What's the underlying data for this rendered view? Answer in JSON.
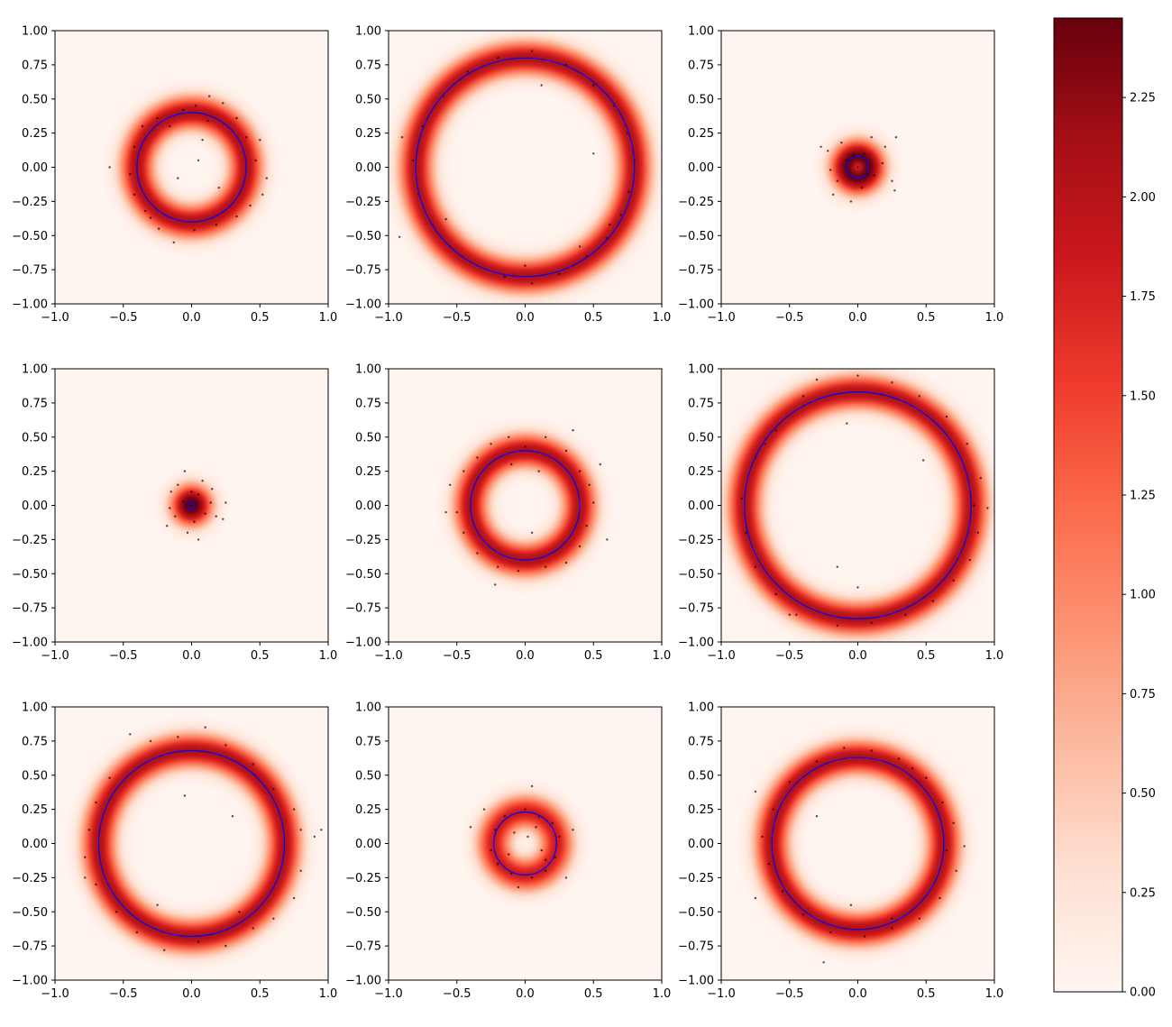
{
  "chart_data": {
    "type": "heatmap",
    "layout": "3x3 grid of density heatmaps with scatter points and fitted circle, shared colorbar",
    "colormap": "Reds",
    "circle_color": "#0000ff",
    "point_color": "#000000",
    "xlim": [
      -1.0,
      1.0
    ],
    "ylim": [
      -1.0,
      1.0
    ],
    "xticks": [
      "−1.0",
      "−0.5",
      "0.0",
      "0.5",
      "1.0"
    ],
    "yticks": [
      "1.00",
      "0.75",
      "0.50",
      "0.25",
      "0.00",
      "−0.25",
      "−0.50",
      "−0.75",
      "−1.00"
    ],
    "colorbar": {
      "range": [
        0.0,
        2.45
      ],
      "ticks": [
        "0.00",
        "0.25",
        "0.50",
        "0.75",
        "1.00",
        "1.25",
        "1.50",
        "1.75",
        "2.00",
        "2.25"
      ]
    },
    "panels": [
      {
        "row": 0,
        "col": 0,
        "radius": 0.4,
        "points": [
          [
            -0.06,
            0.42
          ],
          [
            0.03,
            0.45
          ],
          [
            0.13,
            0.52
          ],
          [
            0.23,
            0.47
          ],
          [
            0.33,
            0.36
          ],
          [
            0.4,
            0.22
          ],
          [
            0.5,
            0.2
          ],
          [
            0.47,
            0.05
          ],
          [
            0.55,
            -0.08
          ],
          [
            0.52,
            -0.2
          ],
          [
            0.43,
            -0.28
          ],
          [
            0.33,
            -0.36
          ],
          [
            0.18,
            -0.42
          ],
          [
            0.02,
            -0.46
          ],
          [
            -0.13,
            -0.55
          ],
          [
            -0.24,
            -0.45
          ],
          [
            -0.34,
            -0.32
          ],
          [
            -0.42,
            -0.2
          ],
          [
            -0.45,
            -0.05
          ],
          [
            -0.6,
            0.0
          ],
          [
            -0.42,
            0.15
          ],
          [
            -0.36,
            0.3
          ],
          [
            -0.25,
            0.36
          ],
          [
            -0.16,
            0.3
          ],
          [
            0.08,
            0.2
          ],
          [
            0.05,
            0.05
          ],
          [
            -0.1,
            -0.08
          ],
          [
            0.2,
            -0.15
          ],
          [
            0.12,
            0.34
          ],
          [
            -0.3,
            -0.37
          ]
        ]
      },
      {
        "row": 0,
        "col": 1,
        "radius": 0.8,
        "points": [
          [
            -0.2,
            0.8
          ],
          [
            0.05,
            0.85
          ],
          [
            0.3,
            0.75
          ],
          [
            0.5,
            0.6
          ],
          [
            0.65,
            0.45
          ],
          [
            0.75,
            0.25
          ],
          [
            0.8,
            0.05
          ],
          [
            0.76,
            -0.18
          ],
          [
            0.7,
            -0.35
          ],
          [
            0.6,
            -0.52
          ],
          [
            0.45,
            -0.65
          ],
          [
            0.25,
            -0.78
          ],
          [
            0.05,
            -0.85
          ],
          [
            -0.15,
            -0.8
          ],
          [
            -0.35,
            -0.72
          ],
          [
            -0.55,
            -0.58
          ],
          [
            -0.68,
            -0.42
          ],
          [
            -0.78,
            -0.2
          ],
          [
            -0.82,
            0.05
          ],
          [
            -0.75,
            0.3
          ],
          [
            -0.6,
            0.52
          ],
          [
            -0.42,
            0.7
          ],
          [
            -0.92,
            -0.51
          ],
          [
            -0.9,
            0.22
          ],
          [
            0.12,
            0.6
          ],
          [
            0.0,
            -0.72
          ],
          [
            0.5,
            0.1
          ],
          [
            0.62,
            -0.42
          ],
          [
            -0.58,
            -0.38
          ],
          [
            0.4,
            -0.58
          ]
        ]
      },
      {
        "row": 0,
        "col": 2,
        "radius": 0.08,
        "points": [
          [
            0.0,
            0.0
          ],
          [
            0.05,
            0.1
          ],
          [
            -0.08,
            0.05
          ],
          [
            0.12,
            -0.06
          ],
          [
            -0.15,
            -0.1
          ],
          [
            0.2,
            0.15
          ],
          [
            -0.22,
            0.12
          ],
          [
            0.25,
            -0.1
          ],
          [
            -0.05,
            -0.25
          ],
          [
            0.1,
            0.22
          ],
          [
            0.03,
            -0.15
          ],
          [
            -0.12,
            0.18
          ],
          [
            0.18,
            0.03
          ],
          [
            -0.2,
            -0.02
          ],
          [
            0.07,
            -0.05
          ],
          [
            -0.03,
            0.08
          ],
          [
            0.28,
            0.22
          ],
          [
            0.27,
            -0.17
          ],
          [
            -0.27,
            0.15
          ],
          [
            -0.18,
            -0.2
          ]
        ]
      },
      {
        "row": 1,
        "col": 0,
        "radius": 0.03,
        "points": [
          [
            0.0,
            0.0
          ],
          [
            0.05,
            0.08
          ],
          [
            -0.06,
            0.03
          ],
          [
            0.1,
            -0.06
          ],
          [
            -0.12,
            -0.08
          ],
          [
            0.15,
            0.12
          ],
          [
            -0.15,
            0.1
          ],
          [
            0.18,
            -0.08
          ],
          [
            -0.03,
            -0.2
          ],
          [
            0.08,
            0.18
          ],
          [
            0.02,
            -0.12
          ],
          [
            -0.1,
            0.15
          ],
          [
            0.14,
            0.02
          ],
          [
            -0.16,
            -0.02
          ],
          [
            0.25,
            0.02
          ],
          [
            0.23,
            -0.1
          ],
          [
            -0.18,
            -0.15
          ],
          [
            -0.05,
            0.25
          ],
          [
            0.05,
            -0.25
          ],
          [
            0.0,
            0.1
          ]
        ]
      },
      {
        "row": 1,
        "col": 1,
        "radius": 0.4,
        "points": [
          [
            -0.12,
            0.5
          ],
          [
            0.0,
            0.43
          ],
          [
            0.15,
            0.5
          ],
          [
            0.3,
            0.4
          ],
          [
            0.4,
            0.25
          ],
          [
            0.47,
            0.15
          ],
          [
            0.5,
            0.02
          ],
          [
            0.45,
            -0.15
          ],
          [
            0.4,
            -0.3
          ],
          [
            0.3,
            -0.42
          ],
          [
            0.15,
            -0.45
          ],
          [
            -0.05,
            -0.48
          ],
          [
            -0.2,
            -0.45
          ],
          [
            -0.35,
            -0.35
          ],
          [
            -0.45,
            -0.2
          ],
          [
            -0.5,
            -0.05
          ],
          [
            -0.55,
            0.15
          ],
          [
            -0.45,
            0.25
          ],
          [
            -0.35,
            0.35
          ],
          [
            -0.25,
            0.45
          ],
          [
            -0.22,
            -0.58
          ],
          [
            -0.58,
            -0.05
          ],
          [
            0.1,
            0.25
          ],
          [
            -0.1,
            0.3
          ],
          [
            0.05,
            -0.2
          ],
          [
            0.6,
            -0.25
          ],
          [
            0.55,
            0.3
          ],
          [
            0.35,
            0.55
          ]
        ]
      },
      {
        "row": 1,
        "col": 2,
        "radius": 0.83,
        "points": [
          [
            -0.3,
            0.92
          ],
          [
            0.0,
            0.95
          ],
          [
            0.25,
            0.9
          ],
          [
            0.45,
            0.8
          ],
          [
            0.65,
            0.65
          ],
          [
            0.8,
            0.45
          ],
          [
            0.9,
            0.2
          ],
          [
            0.85,
            0.0
          ],
          [
            0.88,
            -0.2
          ],
          [
            0.82,
            -0.4
          ],
          [
            0.7,
            -0.55
          ],
          [
            0.55,
            -0.7
          ],
          [
            0.35,
            -0.8
          ],
          [
            0.1,
            -0.86
          ],
          [
            -0.15,
            -0.88
          ],
          [
            -0.45,
            -0.8
          ],
          [
            -0.6,
            -0.65
          ],
          [
            -0.75,
            -0.45
          ],
          [
            -0.82,
            -0.2
          ],
          [
            -0.85,
            0.05
          ],
          [
            -0.75,
            0.35
          ],
          [
            -0.6,
            0.55
          ],
          [
            -0.4,
            0.8
          ],
          [
            -0.5,
            -0.8
          ],
          [
            -0.68,
            0.45
          ],
          [
            0.95,
            -0.02
          ],
          [
            -0.08,
            0.6
          ],
          [
            0.48,
            0.33
          ],
          [
            0.0,
            -0.6
          ],
          [
            -0.15,
            -0.45
          ]
        ]
      },
      {
        "row": 2,
        "col": 0,
        "radius": 0.68,
        "points": [
          [
            -0.45,
            0.8
          ],
          [
            -0.3,
            0.75
          ],
          [
            -0.1,
            0.78
          ],
          [
            0.1,
            0.85
          ],
          [
            0.25,
            0.72
          ],
          [
            0.45,
            0.58
          ],
          [
            0.6,
            0.4
          ],
          [
            0.75,
            0.25
          ],
          [
            0.8,
            0.1
          ],
          [
            0.9,
            0.05
          ],
          [
            0.8,
            -0.2
          ],
          [
            0.75,
            -0.4
          ],
          [
            0.6,
            -0.55
          ],
          [
            0.45,
            -0.62
          ],
          [
            0.25,
            -0.75
          ],
          [
            0.05,
            -0.72
          ],
          [
            -0.2,
            -0.78
          ],
          [
            -0.4,
            -0.65
          ],
          [
            -0.55,
            -0.5
          ],
          [
            -0.7,
            -0.3
          ],
          [
            -0.78,
            -0.1
          ],
          [
            -0.75,
            0.1
          ],
          [
            -0.7,
            0.3
          ],
          [
            -0.6,
            0.48
          ],
          [
            0.95,
            0.1
          ],
          [
            -0.78,
            -0.25
          ],
          [
            0.3,
            0.2
          ],
          [
            -0.25,
            -0.45
          ],
          [
            -0.05,
            0.35
          ],
          [
            0.35,
            -0.5
          ]
        ]
      },
      {
        "row": 2,
        "col": 1,
        "radius": 0.23,
        "points": [
          [
            0.0,
            0.25
          ],
          [
            0.1,
            0.2
          ],
          [
            0.2,
            0.15
          ],
          [
            0.25,
            0.05
          ],
          [
            0.22,
            -0.1
          ],
          [
            0.15,
            -0.2
          ],
          [
            0.05,
            -0.25
          ],
          [
            -0.1,
            -0.22
          ],
          [
            -0.2,
            -0.15
          ],
          [
            -0.25,
            -0.05
          ],
          [
            -0.22,
            0.1
          ],
          [
            -0.15,
            0.2
          ],
          [
            0.05,
            0.42
          ],
          [
            -0.4,
            0.12
          ],
          [
            0.3,
            -0.25
          ],
          [
            -0.05,
            -0.32
          ],
          [
            0.35,
            0.1
          ],
          [
            -0.3,
            0.25
          ],
          [
            0.02,
            0.05
          ],
          [
            0.12,
            -0.05
          ],
          [
            -0.08,
            0.08
          ],
          [
            0.08,
            0.12
          ],
          [
            -0.12,
            -0.08
          ],
          [
            0.15,
            -0.12
          ]
        ]
      },
      {
        "row": 2,
        "col": 2,
        "radius": 0.63,
        "points": [
          [
            -0.3,
            0.6
          ],
          [
            -0.1,
            0.7
          ],
          [
            0.1,
            0.68
          ],
          [
            0.3,
            0.62
          ],
          [
            0.5,
            0.48
          ],
          [
            0.62,
            0.3
          ],
          [
            0.7,
            0.15
          ],
          [
            0.65,
            -0.05
          ],
          [
            0.72,
            -0.2
          ],
          [
            0.6,
            -0.4
          ],
          [
            0.45,
            -0.55
          ],
          [
            0.25,
            -0.62
          ],
          [
            0.05,
            -0.68
          ],
          [
            -0.2,
            -0.65
          ],
          [
            -0.4,
            -0.52
          ],
          [
            -0.55,
            -0.35
          ],
          [
            -0.65,
            -0.15
          ],
          [
            -0.7,
            0.05
          ],
          [
            -0.62,
            0.25
          ],
          [
            -0.5,
            0.45
          ],
          [
            -0.75,
            0.38
          ],
          [
            0.78,
            -0.02
          ],
          [
            -0.25,
            -0.87
          ],
          [
            -0.3,
            0.2
          ],
          [
            -0.05,
            -0.45
          ],
          [
            0.25,
            -0.55
          ],
          [
            0.4,
            0.55
          ],
          [
            -0.75,
            -0.4
          ]
        ]
      }
    ]
  }
}
